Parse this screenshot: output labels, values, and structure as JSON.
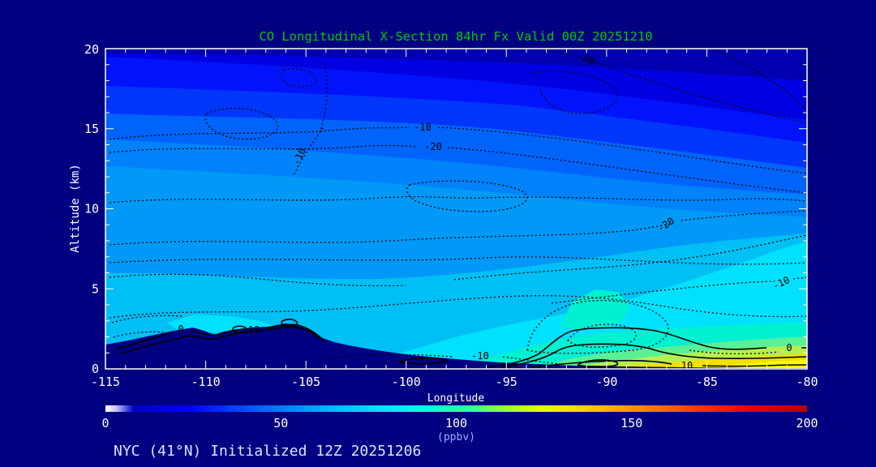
{
  "title": "CO Longitudinal X-Section 84hr  Fx Valid 00Z 20251210",
  "footer": "NYC (41°N) Initialized 12Z 20251206",
  "axes": {
    "x": {
      "label": "Longitude",
      "ticks": [
        "-115",
        "-110",
        "-105",
        "-100",
        "-95",
        "-90",
        "-85",
        "-80"
      ]
    },
    "y": {
      "label": "Altitude (km)",
      "ticks": [
        "0",
        "5",
        "10",
        "15",
        "20"
      ]
    }
  },
  "colorbar": {
    "units": "(ppbv)",
    "ticks": [
      "0",
      "50",
      "100",
      "150",
      "200"
    ]
  },
  "colors": {
    "background": "#000080",
    "title": "#00CC00",
    "axis": "#FFFFFF",
    "footer": "#D7E7FF",
    "units_label": "#9CB0FF",
    "contour": "#000000"
  },
  "contour_labels": [
    {
      "text": "-10"
    },
    {
      "text": "-10"
    },
    {
      "text": "-20"
    },
    {
      "text": "-10"
    },
    {
      "text": "-20"
    },
    {
      "text": "-10"
    },
    {
      "text": "-10"
    },
    {
      "text": "0"
    },
    {
      "text": "10"
    },
    {
      "text": "0"
    },
    {
      "text": "10"
    }
  ],
  "chart_data": {
    "type": "filled_contour_cross_section",
    "title": "CO Longitudinal X-Section 84hr  Fx Valid 00Z 20251210",
    "subtitle": "NYC (41°N) Initialized 12Z 20251206",
    "xlabel": "Longitude",
    "ylabel": "Altitude (km)",
    "xlim": [
      -115,
      -80
    ],
    "ylim": [
      0,
      20
    ],
    "grid": false,
    "colorbar": {
      "label": "(ppbv)",
      "min": 0,
      "max": 200,
      "ticks": [
        0,
        50,
        100,
        150,
        200
      ],
      "colormap": "jet-like: white -> dark blue -> blue -> cyan -> green -> yellow -> orange -> red -> dark red"
    },
    "field": "CO mixing ratio (ppbv): ~20-30 ppbv (dark blue) at 15-20 km, 50-70 ppbv (blue) 8-14 km, 75-90 ppbv (cyan) 2-6 km, rising to 100-150 ppbv (green-yellow) in the lowest 1 km east of -92, maximum ~150 ppbv at surface near -80",
    "levels": [
      {
        "ppbv": 20,
        "color": "#0000B0"
      },
      {
        "ppbv": 30,
        "color": "#0000E0"
      },
      {
        "ppbv": 38,
        "color": "#0013FA"
      },
      {
        "ppbv": 45,
        "color": "#0036FA"
      },
      {
        "ppbv": 52,
        "color": "#0064FA"
      },
      {
        "ppbv": 58,
        "color": "#0082FA"
      },
      {
        "ppbv": 65,
        "color": "#0099F7"
      },
      {
        "ppbv": 75,
        "color": "#00BFF5"
      },
      {
        "ppbv": 85,
        "color": "#00E1FF"
      },
      {
        "ppbv": 95,
        "color": "#00F0D2"
      },
      {
        "ppbv": 105,
        "color": "#5AF096"
      },
      {
        "ppbv": 115,
        "color": "#B4F050"
      },
      {
        "ppbv": 128,
        "color": "#F0E100"
      },
      {
        "ppbv": 145,
        "color": "#FFFF00"
      }
    ],
    "overlay_contours": {
      "style_dotted_levels": [
        -10,
        -20
      ],
      "style_solid_levels": [
        0,
        10
      ],
      "labeled_values_positions_lon_km": [
        {
          "value": -10,
          "lon": -91.0,
          "km": 19.4,
          "style": "dotted"
        },
        {
          "value": -10,
          "lon": -99.2,
          "km": 15.1,
          "style": "dotted"
        },
        {
          "value": -20,
          "lon": -98.7,
          "km": 13.9,
          "style": "dotted"
        },
        {
          "value": -10,
          "lon": -105.3,
          "km": 13.3,
          "style": "dotted"
        },
        {
          "value": -20,
          "lon": -87.0,
          "km": 9.0,
          "style": "dotted"
        },
        {
          "value": -10,
          "lon": -81.3,
          "km": 5.4,
          "style": "dotted"
        },
        {
          "value": -10,
          "lon": -96.3,
          "km": 0.8,
          "style": "dotted"
        },
        {
          "value": 0,
          "lon": -80.9,
          "km": 1.3,
          "style": "solid"
        },
        {
          "value": 10,
          "lon": -86.0,
          "km": 0.2,
          "style": "solid"
        },
        {
          "value": 0,
          "lon": -111.2,
          "km": 2.5,
          "style": "solid"
        },
        {
          "value": 10,
          "lon": -107.6,
          "km": 2.4,
          "style": "solid"
        }
      ]
    },
    "terrain_profile": [
      {
        "lon": -115,
        "km": 1.5
      },
      {
        "lon": -112.5,
        "km": 2.2
      },
      {
        "lon": -110.6,
        "km": 2.6
      },
      {
        "lon": -109.5,
        "km": 2.1
      },
      {
        "lon": -107.5,
        "km": 2.6
      },
      {
        "lon": -106,
        "km": 2.8
      },
      {
        "lon": -104,
        "km": 1.6
      },
      {
        "lon": -102,
        "km": 1.2
      },
      {
        "lon": -100,
        "km": 0.8
      },
      {
        "lon": -97,
        "km": 0.5
      },
      {
        "lon": -94,
        "km": 0.3
      },
      {
        "lon": -90,
        "km": 0.15
      },
      {
        "lon": -85,
        "km": 0.1
      },
      {
        "lon": -80,
        "km": 0.05
      }
    ]
  }
}
